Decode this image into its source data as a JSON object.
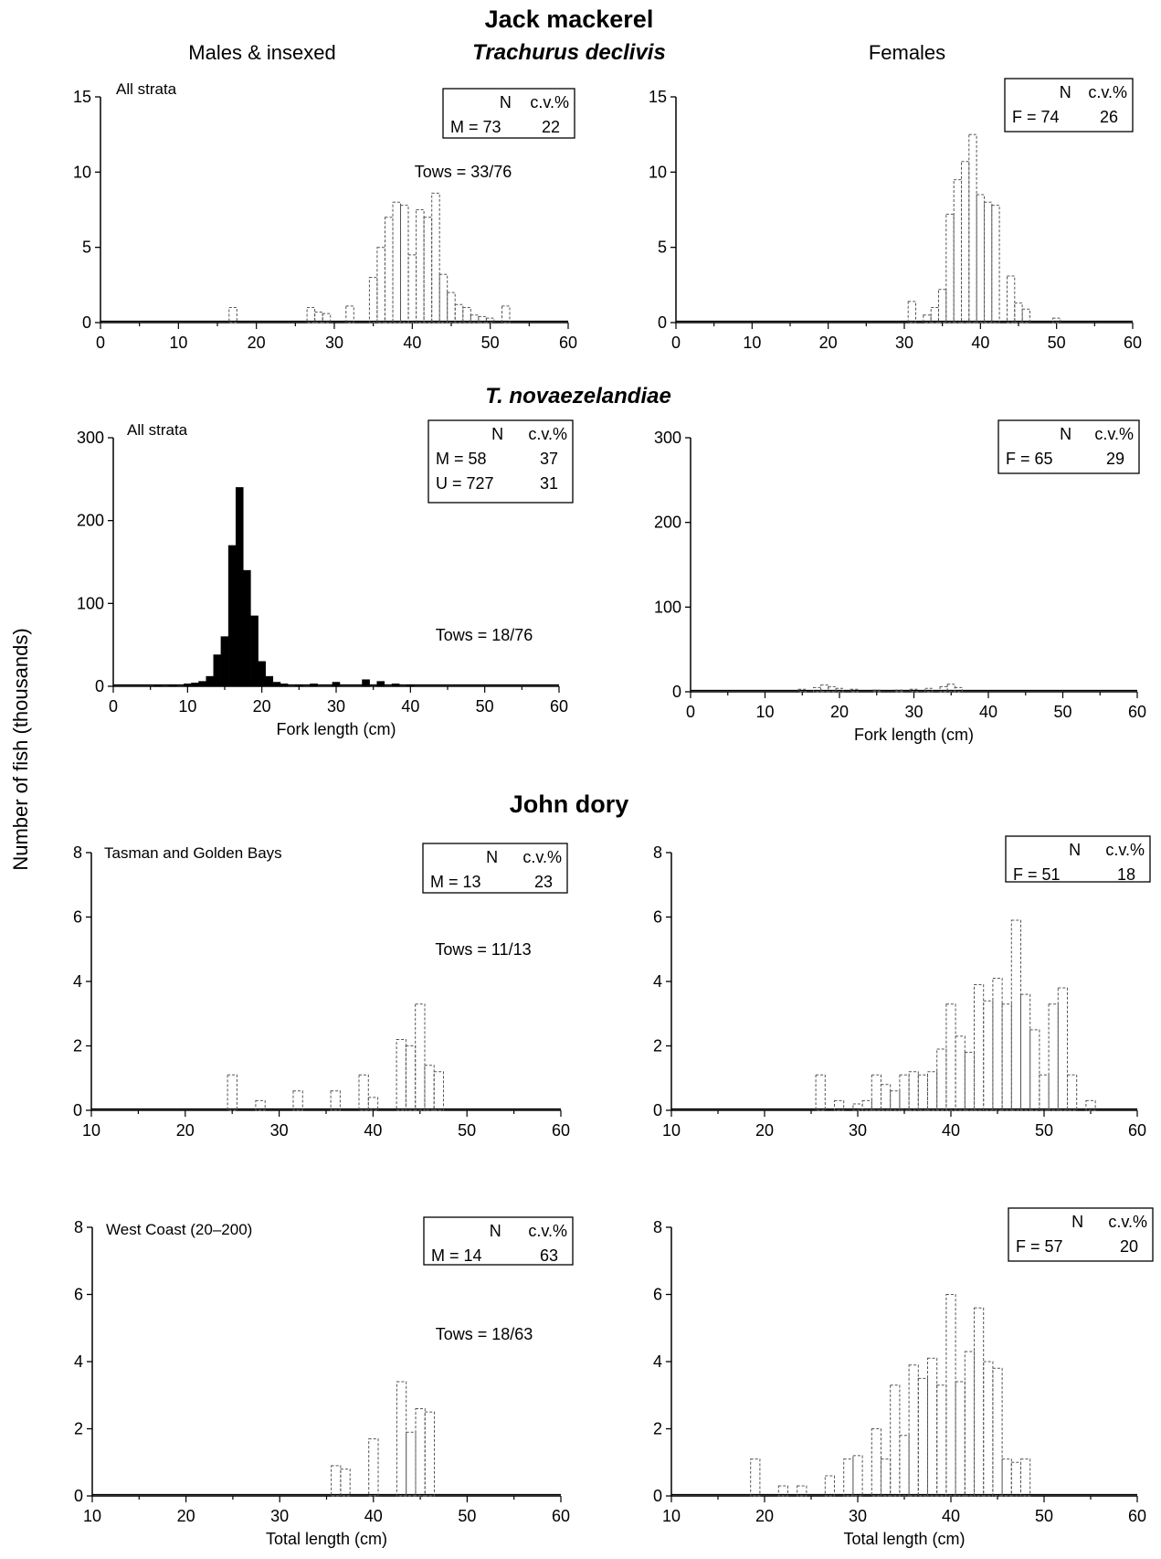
{
  "headings": {
    "jack_mackerel": "Jack mackerel",
    "males_insexed": "Males & insexed",
    "trachurus_declivis": "Trachurus declivis",
    "females": "Females",
    "t_novaezelandiae": "T. novaezelandiae",
    "john_dory": "John dory",
    "y_axis": "Number of fish (thousands)"
  },
  "chart_data": [
    {
      "id": "tdec-m",
      "type": "bar",
      "title": "",
      "region": "All strata",
      "xlabel": "",
      "ylabel": "Number of fish (thousands)",
      "xlim": [
        0,
        60
      ],
      "ylim": [
        0,
        15
      ],
      "xticks": [
        0,
        10,
        20,
        30,
        40,
        50,
        60
      ],
      "yticks": [
        0,
        5,
        10,
        15
      ],
      "tows": "Tows = 33/76",
      "legend": {
        "header": [
          "N",
          "c.v.%"
        ],
        "rows": [
          [
            "M = 73",
            "22"
          ]
        ]
      },
      "grid": false,
      "bar_width": 1,
      "fill": "none",
      "stroke": "#555555",
      "x": [
        17,
        27,
        28,
        29,
        32,
        35,
        36,
        37,
        38,
        39,
        40,
        41,
        42,
        43,
        44,
        45,
        46,
        47,
        48,
        49,
        50,
        52
      ],
      "values": [
        1.0,
        1.0,
        0.7,
        0.6,
        1.1,
        3.0,
        5.0,
        7.0,
        8.0,
        7.8,
        4.5,
        7.5,
        7.0,
        8.6,
        3.2,
        2.0,
        1.2,
        1.0,
        0.5,
        0.4,
        0.3,
        1.1
      ]
    },
    {
      "id": "tdec-f",
      "type": "bar",
      "title": "",
      "region": "",
      "xlabel": "",
      "ylabel": "Number of fish (thousands)",
      "xlim": [
        0,
        60
      ],
      "ylim": [
        0,
        15
      ],
      "xticks": [
        0,
        10,
        20,
        30,
        40,
        50,
        60
      ],
      "yticks": [
        0,
        5,
        10,
        15
      ],
      "tows": "",
      "legend": {
        "header": [
          "N",
          "c.v.%"
        ],
        "rows": [
          [
            "F = 74",
            "26"
          ]
        ]
      },
      "grid": false,
      "bar_width": 1,
      "fill": "none",
      "stroke": "#555555",
      "x": [
        31,
        33,
        34,
        35,
        36,
        37,
        38,
        39,
        40,
        41,
        42,
        44,
        45,
        46,
        50
      ],
      "values": [
        1.4,
        0.5,
        1.0,
        2.2,
        7.2,
        9.5,
        10.7,
        12.5,
        8.5,
        8.0,
        7.8,
        3.1,
        1.3,
        0.9,
        0.3
      ]
    },
    {
      "id": "tnov-m",
      "type": "bar",
      "title": "",
      "region": "All strata",
      "xlabel": "Fork length (cm)",
      "ylabel": "Number of fish (thousands)",
      "xlim": [
        0,
        60
      ],
      "ylim": [
        0,
        300
      ],
      "xticks": [
        0,
        10,
        20,
        30,
        40,
        50,
        60
      ],
      "yticks": [
        0,
        100,
        200,
        300
      ],
      "tows": "Tows = 18/76",
      "legend": {
        "header": [
          "N",
          "c.v.%"
        ],
        "rows": [
          [
            "M = 58",
            "37"
          ],
          [
            "U = 727",
            "31"
          ]
        ]
      },
      "grid": false,
      "bar_width": 1,
      "fill": "#000000",
      "stroke": "#000000",
      "x": [
        6,
        8,
        10,
        11,
        12,
        13,
        14,
        15,
        16,
        17,
        18,
        19,
        20,
        21,
        22,
        23,
        25,
        27,
        30,
        34,
        36,
        38,
        40
      ],
      "values": [
        1,
        2,
        3,
        4,
        6,
        12,
        38,
        60,
        170,
        240,
        140,
        85,
        30,
        12,
        5,
        3,
        2,
        3,
        5,
        8,
        6,
        3,
        2
      ]
    },
    {
      "id": "tnov-f",
      "type": "bar",
      "title": "",
      "region": "",
      "xlabel": "Fork length (cm)",
      "ylabel": "Number of fish (thousands)",
      "xlim": [
        0,
        60
      ],
      "ylim": [
        0,
        300
      ],
      "xticks": [
        0,
        10,
        20,
        30,
        40,
        50,
        60
      ],
      "yticks": [
        0,
        100,
        200,
        300
      ],
      "tows": "",
      "legend": {
        "header": [
          "N",
          "c.v.%"
        ],
        "rows": [
          [
            "F = 65",
            "29"
          ]
        ]
      },
      "grid": false,
      "bar_width": 1,
      "fill": "none",
      "stroke": "#555555",
      "x": [
        15,
        17,
        18,
        19,
        20,
        22,
        25,
        28,
        30,
        32,
        34,
        35,
        36
      ],
      "values": [
        3,
        5,
        8,
        6,
        4,
        3,
        2,
        2,
        3,
        4,
        6,
        9,
        5
      ]
    },
    {
      "id": "jd-tgb-m",
      "type": "bar",
      "title": "",
      "region": "Tasman and Golden Bays",
      "xlabel": "",
      "ylabel": "Number of fish (thousands)",
      "xlim": [
        10,
        60
      ],
      "ylim": [
        0,
        8
      ],
      "xticks": [
        10,
        20,
        30,
        40,
        50,
        60
      ],
      "yticks": [
        0,
        2,
        4,
        6,
        8
      ],
      "tows": "Tows = 11/13",
      "legend": {
        "header": [
          "N",
          "c.v.%"
        ],
        "rows": [
          [
            "M = 13",
            "23"
          ]
        ]
      },
      "grid": false,
      "bar_width": 1,
      "fill": "none",
      "stroke": "#555555",
      "x": [
        25,
        28,
        32,
        36,
        39,
        40,
        43,
        44,
        45,
        46,
        47
      ],
      "values": [
        1.1,
        0.3,
        0.6,
        0.6,
        1.1,
        0.4,
        2.2,
        2.0,
        3.3,
        1.4,
        1.2
      ]
    },
    {
      "id": "jd-tgb-f",
      "type": "bar",
      "title": "",
      "region": "",
      "xlabel": "",
      "ylabel": "Number of fish (thousands)",
      "xlim": [
        10,
        60
      ],
      "ylim": [
        0,
        8
      ],
      "xticks": [
        10,
        20,
        30,
        40,
        50,
        60
      ],
      "yticks": [
        0,
        2,
        4,
        6,
        8
      ],
      "tows": "",
      "legend": {
        "header": [
          "N",
          "c.v.%"
        ],
        "rows": [
          [
            "F = 51",
            "18"
          ]
        ]
      },
      "grid": false,
      "bar_width": 1,
      "fill": "none",
      "stroke": "#555555",
      "x": [
        26,
        28,
        30,
        31,
        32,
        33,
        34,
        35,
        36,
        37,
        38,
        39,
        40,
        41,
        42,
        43,
        44,
        45,
        46,
        47,
        48,
        49,
        50,
        51,
        52,
        53,
        55
      ],
      "values": [
        1.1,
        0.3,
        0.2,
        0.3,
        1.1,
        0.8,
        0.6,
        1.1,
        1.2,
        1.1,
        1.2,
        1.9,
        3.3,
        2.3,
        1.8,
        3.9,
        3.4,
        4.1,
        3.3,
        5.9,
        3.6,
        2.5,
        1.1,
        3.3,
        3.8,
        1.1,
        0.3
      ]
    },
    {
      "id": "jd-wc-m",
      "type": "bar",
      "title": "",
      "region": "West Coast (20–200)",
      "xlabel": "Total length (cm)",
      "ylabel": "Number of fish (thousands)",
      "xlim": [
        10,
        60
      ],
      "ylim": [
        0,
        8
      ],
      "xticks": [
        10,
        20,
        30,
        40,
        50,
        60
      ],
      "yticks": [
        0,
        2,
        4,
        6,
        8
      ],
      "tows": "Tows = 18/63",
      "legend": {
        "header": [
          "N",
          "c.v.%"
        ],
        "rows": [
          [
            "M = 14",
            "63"
          ]
        ]
      },
      "grid": false,
      "bar_width": 1,
      "fill": "none",
      "stroke": "#555555",
      "x": [
        36,
        37,
        40,
        43,
        44,
        45,
        46
      ],
      "values": [
        0.9,
        0.8,
        1.7,
        3.4,
        1.9,
        2.6,
        2.5
      ]
    },
    {
      "id": "jd-wc-f",
      "type": "bar",
      "title": "",
      "region": "",
      "xlabel": "Total length (cm)",
      "ylabel": "Number of fish (thousands)",
      "xlim": [
        10,
        60
      ],
      "ylim": [
        0,
        8
      ],
      "xticks": [
        10,
        20,
        30,
        40,
        50,
        60
      ],
      "yticks": [
        0,
        2,
        4,
        6,
        8
      ],
      "tows": "",
      "legend": {
        "header": [
          "N",
          "c.v.%"
        ],
        "rows": [
          [
            "F = 57",
            "20"
          ]
        ]
      },
      "grid": false,
      "bar_width": 1,
      "fill": "none",
      "stroke": "#555555",
      "x": [
        19,
        22,
        24,
        27,
        29,
        30,
        32,
        33,
        34,
        35,
        36,
        37,
        38,
        39,
        40,
        41,
        42,
        43,
        44,
        45,
        46,
        47,
        48
      ],
      "values": [
        1.1,
        0.3,
        0.3,
        0.6,
        1.1,
        1.2,
        2.0,
        1.1,
        3.3,
        1.8,
        3.9,
        3.5,
        4.1,
        3.3,
        6.0,
        3.4,
        4.3,
        5.6,
        4.0,
        3.8,
        1.1,
        1.0,
        1.1
      ]
    }
  ]
}
